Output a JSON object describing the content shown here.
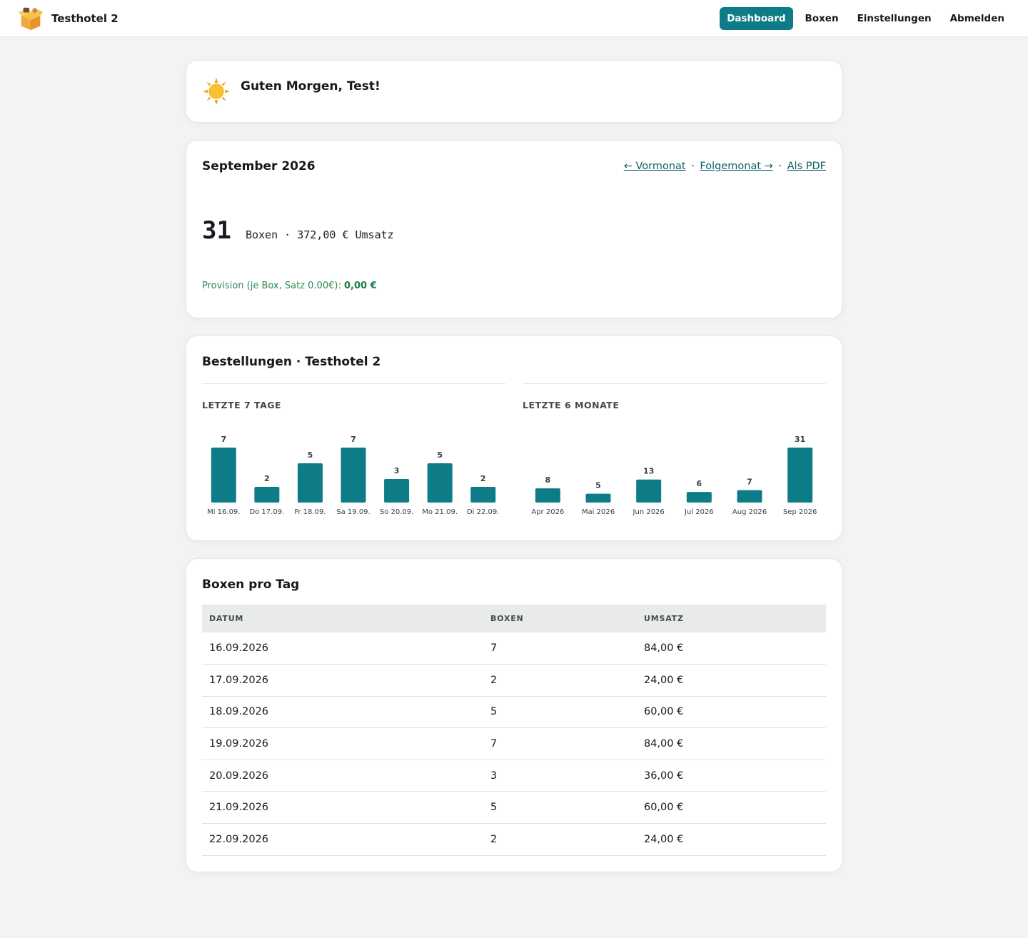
{
  "app": {
    "name": "Testhotel 2"
  },
  "nav": {
    "items": [
      {
        "label": "Dashboard",
        "active": true
      },
      {
        "label": "Boxen",
        "active": false
      },
      {
        "label": "Einstellungen",
        "active": false
      },
      {
        "label": "Abmelden",
        "active": false
      }
    ]
  },
  "greeting": {
    "text": "Guten Morgen, Test!",
    "icon": "sun-icon"
  },
  "month": {
    "title": "September 2026",
    "prev_label": "← Vormonat",
    "next_label": "Folgemonat →",
    "pdf_label": "Als PDF",
    "separator": "·",
    "boxes_count": "31",
    "summary": "Boxen · 372,00 € Umsatz",
    "provision_label": "Provision (je Box, Satz 0.00€):",
    "provision_value": "0,00 €"
  },
  "orders": {
    "title": "Bestellungen · Testhotel 2",
    "accent_color": "#0e7c86"
  },
  "chart_data": [
    {
      "type": "bar",
      "title": "LETZTE 7 TAGE",
      "categories": [
        "Mi 16.09.",
        "Do 17.09.",
        "Fr 18.09.",
        "Sa 19.09.",
        "So 20.09.",
        "Mo 21.09.",
        "Di 22.09."
      ],
      "values": [
        7,
        2,
        5,
        7,
        3,
        5,
        2
      ],
      "xlabel": "",
      "ylabel": "",
      "ylim": [
        0,
        7
      ]
    },
    {
      "type": "bar",
      "title": "LETZTE 6 MONATE",
      "categories": [
        "Apr 2026",
        "Mai 2026",
        "Jun 2026",
        "Jul 2026",
        "Aug 2026",
        "Sep 2026"
      ],
      "values": [
        8,
        5,
        13,
        6,
        7,
        31
      ],
      "xlabel": "",
      "ylabel": "",
      "ylim": [
        0,
        31
      ]
    }
  ],
  "daily": {
    "title": "Boxen pro Tag",
    "headers": [
      "DATUM",
      "BOXEN",
      "UMSATZ"
    ],
    "rows": [
      [
        "16.09.2026",
        "7",
        "84,00 €"
      ],
      [
        "17.09.2026",
        "2",
        "24,00 €"
      ],
      [
        "18.09.2026",
        "5",
        "60,00 €"
      ],
      [
        "19.09.2026",
        "7",
        "84,00 €"
      ],
      [
        "20.09.2026",
        "3",
        "36,00 €"
      ],
      [
        "21.09.2026",
        "5",
        "60,00 €"
      ],
      [
        "22.09.2026",
        "2",
        "24,00 €"
      ]
    ]
  }
}
